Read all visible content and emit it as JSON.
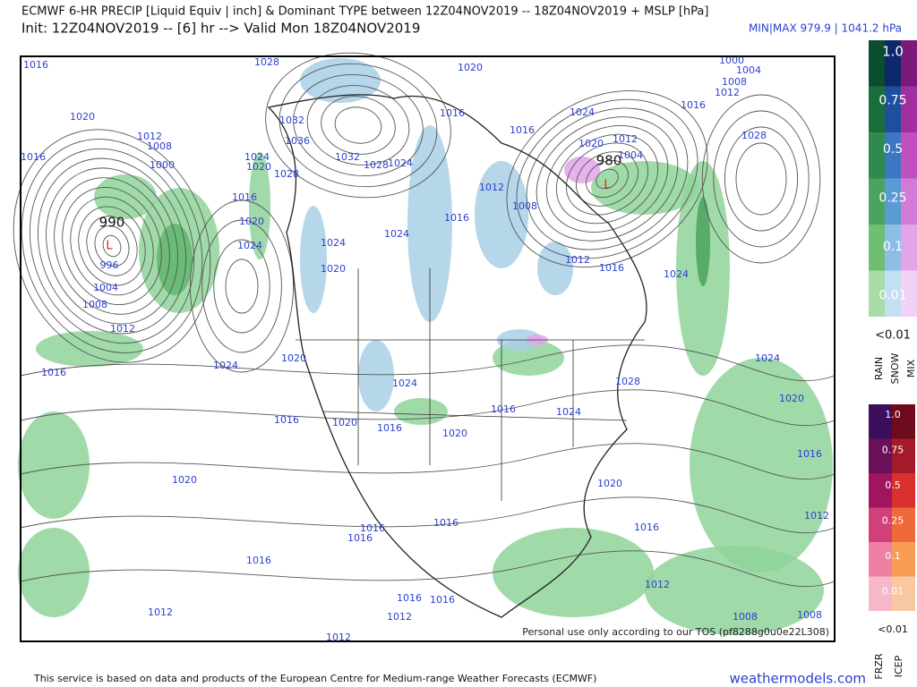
{
  "header": {
    "title": "ECMWF 6-HR PRECIP [Liquid Equiv | inch] & Dominant TYPE between 12Z04NOV2019 -- 18Z04NOV2019 + MSLP [hPa]",
    "subtitle": "Init: 12Z04NOV2019 -- [6] hr --> Valid Mon 18Z04NOV2019",
    "minmax": "MIN|MAX 979.9 | 1041.2 hPa"
  },
  "map": {
    "lows": [
      {
        "pressure": "990",
        "symbol": "L"
      },
      {
        "pressure": "980",
        "symbol": "L"
      }
    ],
    "isobar_labels": [
      "1016",
      "1028",
      "1020",
      "1000",
      "1004",
      "1008",
      "1012",
      "1016",
      "1024",
      "1028",
      "1020",
      "1012",
      "1008",
      "1016",
      "1000",
      "1032",
      "1036",
      "1024",
      "1020",
      "1028",
      "1032",
      "1028",
      "1024",
      "1016",
      "1016",
      "1020",
      "1012",
      "1004",
      "1012",
      "1008",
      "1016",
      "1016",
      "1020",
      "1024",
      "1024",
      "1024",
      "1020",
      "996",
      "1004",
      "1008",
      "1012",
      "1016",
      "1024",
      "1020",
      "1012",
      "1016",
      "1024",
      "1024",
      "1028",
      "1020",
      "1016",
      "1024",
      "1016",
      "1024",
      "1016",
      "1020",
      "1016",
      "1020",
      "1020",
      "1020",
      "1012",
      "1016",
      "1016",
      "1016",
      "1016",
      "1016",
      "1012",
      "1016",
      "1016",
      "1012",
      "1012",
      "1008",
      "1008",
      "1012"
    ],
    "notice": "Personal use only according to our TOS (pf8288g0u0e22L308)"
  },
  "legend_top": {
    "labels": [
      "1.0",
      "0.75",
      "0.5",
      "0.25",
      "0.1",
      "0.01"
    ],
    "below": "<0.01",
    "types": [
      "RAIN",
      "SNOW",
      "MIX"
    ]
  },
  "legend_bottom": {
    "labels": [
      "1.0",
      "0.75",
      "0.5",
      "0.25",
      "0.1",
      "0.01"
    ],
    "below": "<0.01",
    "types": [
      "FRZR",
      "ICEP"
    ]
  },
  "footer": {
    "credit": "This service is based on data and products of the European Centre for Medium-range Weather Forecasts (ECMWF)",
    "site": "weathermodels.com"
  }
}
